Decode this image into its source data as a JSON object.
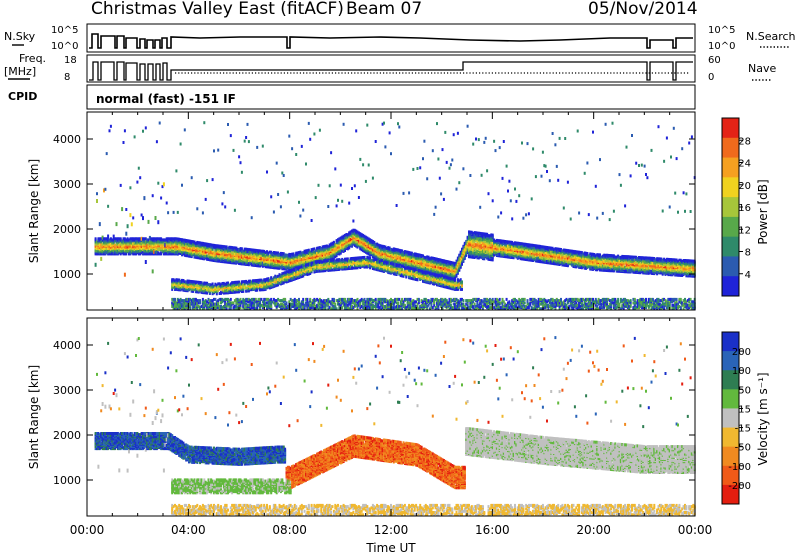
{
  "header": {
    "station_title": "Christmas Valley East (fitACF)",
    "beam_label": "Beam 07",
    "date": "05/Nov/2014"
  },
  "summary_panels": {
    "nsky": {
      "label": "N.Sky",
      "tick_top": "10^5",
      "tick_bottom": "10^0"
    },
    "nsearch": {
      "label": "N.Search",
      "tick_top": "10^5",
      "tick_bottom": "10^0"
    },
    "freq": {
      "label_line1": "Freq.",
      "label_line2": "[MHz]",
      "tick_top": "18",
      "tick_bottom": "8"
    },
    "nave": {
      "label": "Nave",
      "tick_top": "60",
      "tick_bottom": "0"
    },
    "cpid": {
      "label": "CPID",
      "value": "normal (fast) -151 IF"
    }
  },
  "chart_data": [
    {
      "type": "heatmap",
      "panel": "power",
      "ylabel": "Slant Range [km]",
      "xlabel": "",
      "ylim": [
        200,
        4600
      ],
      "yticks": [
        "1000",
        "2000",
        "3000",
        "4000"
      ],
      "colorbar": {
        "label": "Power [dB]",
        "range": [
          0,
          32
        ],
        "tick_labels": [
          "4",
          "8",
          "12",
          "16",
          "20",
          "24",
          "28"
        ],
        "colors": [
          "#1f23d8",
          "#2b5bb0",
          "#2f8a6a",
          "#58a84a",
          "#a7c63a",
          "#f0d21f",
          "#f5a020",
          "#f06a1c",
          "#e42316"
        ]
      },
      "features": [
        {
          "desc": "main band",
          "points": [
            [
              3.5,
              1650
            ],
            [
              5.0,
              1500
            ],
            [
              6.5,
              1400
            ],
            [
              8.0,
              1300
            ],
            [
              9.5,
              1500
            ],
            [
              10.5,
              1850
            ],
            [
              11.5,
              1500
            ],
            [
              13.0,
              1300
            ],
            [
              14.5,
              1100
            ],
            [
              15.0,
              1700
            ],
            [
              17.0,
              1550
            ],
            [
              20.0,
              1300
            ],
            [
              24.0,
              1150
            ]
          ]
        },
        {
          "desc": "lower band",
          "points": [
            [
              3.5,
              800
            ],
            [
              5.0,
              700
            ],
            [
              7.0,
              800
            ],
            [
              8.0,
              1000
            ],
            [
              9.0,
              1200
            ],
            [
              11.0,
              1300
            ],
            [
              14.5,
              800
            ]
          ]
        }
      ]
    },
    {
      "type": "heatmap",
      "panel": "velocity",
      "ylabel": "Slant Range [km]",
      "xlabel": "Time UT",
      "ylim": [
        200,
        4600
      ],
      "yticks": [
        "1000",
        "2000",
        "3000",
        "4000"
      ],
      "xticks": [
        "00:00",
        "04:00",
        "08:00",
        "12:00",
        "16:00",
        "20:00",
        "00:00"
      ],
      "colorbar": {
        "label": "Velocity [m s⁻¹]",
        "range": [
          -250,
          250
        ],
        "tick_labels": [
          "200",
          "100",
          "50",
          "15",
          "-15",
          "-50",
          "-100",
          "-200"
        ],
        "colors": [
          "#1a30c8",
          "#2a64b8",
          "#2e7d52",
          "#62b93d",
          "#c0c0c0",
          "#f0b830",
          "#f08a20",
          "#f05a18",
          "#e41e10"
        ]
      },
      "features": [
        {
          "desc": "blue region",
          "points": [
            [
              3.2,
              1900
            ],
            [
              4.0,
              1600
            ],
            [
              6.0,
              1550
            ],
            [
              7.5,
              1600
            ]
          ]
        },
        {
          "desc": "orange region",
          "points": [
            [
              8.0,
              1100
            ],
            [
              10.5,
              1800
            ],
            [
              13.0,
              1600
            ],
            [
              14.5,
              1100
            ]
          ]
        },
        {
          "desc": "grey region",
          "points": [
            [
              15.0,
              1900
            ],
            [
              18.0,
              1700
            ],
            [
              22.0,
              1500
            ],
            [
              24.0,
              1500
            ]
          ]
        }
      ]
    }
  ]
}
